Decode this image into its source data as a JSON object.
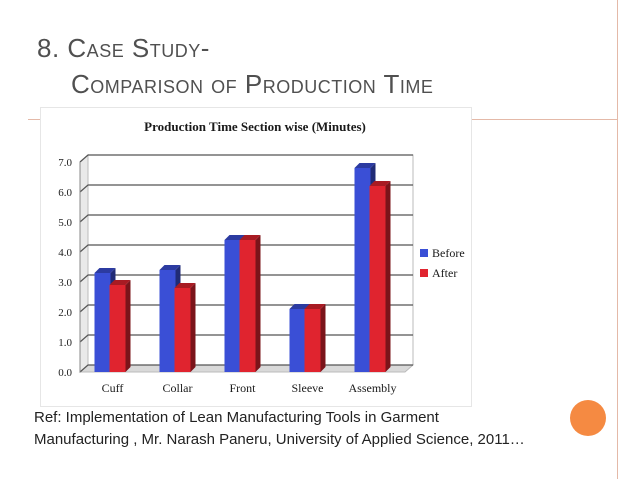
{
  "slide": {
    "title_line1": "8. Case Study-",
    "title_line2": "Comparison of Production Time",
    "reference_line1": "Ref:  Implementation of Lean Manufacturing Tools in Garment",
    "reference_line2": "Manufacturing , Mr. Narash Paneru, University of Applied Science, 2011…",
    "accent_color": "#f58a42",
    "line_color": "#e4b9a8"
  },
  "chart_data": {
    "type": "bar",
    "title": "Production Time Section wise (Minutes)",
    "categories": [
      "Cuff",
      "Collar",
      "Front",
      "Sleeve",
      "Assembly"
    ],
    "series": [
      {
        "name": "Before",
        "values": [
          3.3,
          3.4,
          4.4,
          2.1,
          6.8
        ],
        "color": "#3a4fd6"
      },
      {
        "name": "After",
        "values": [
          2.9,
          2.8,
          4.4,
          2.1,
          6.2
        ],
        "color": "#e0242f"
      }
    ],
    "ylim": [
      0,
      7
    ],
    "yticks": [
      "0.0",
      "1.0",
      "2.0",
      "3.0",
      "4.0",
      "5.0",
      "6.0",
      "7.0"
    ],
    "xlabel": "",
    "ylabel": "",
    "grid": true,
    "legend": "right"
  }
}
